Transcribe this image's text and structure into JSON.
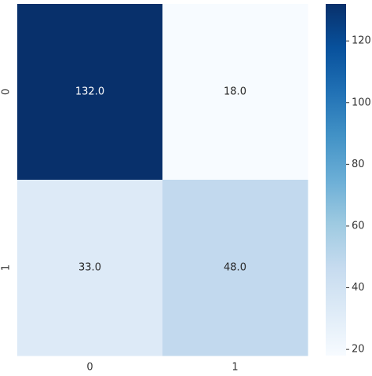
{
  "chart_data": {
    "type": "heatmap",
    "x_categories": [
      "0",
      "1"
    ],
    "y_categories": [
      "0",
      "1"
    ],
    "values": [
      [
        132,
        18
      ],
      [
        33,
        48
      ]
    ],
    "value_labels": [
      [
        "132.0",
        "18.0"
      ],
      [
        "33.0",
        "48.0"
      ]
    ],
    "colormap": "Blues",
    "clim": [
      18,
      132
    ],
    "cticks": [
      20,
      40,
      60,
      80,
      100,
      120
    ]
  }
}
